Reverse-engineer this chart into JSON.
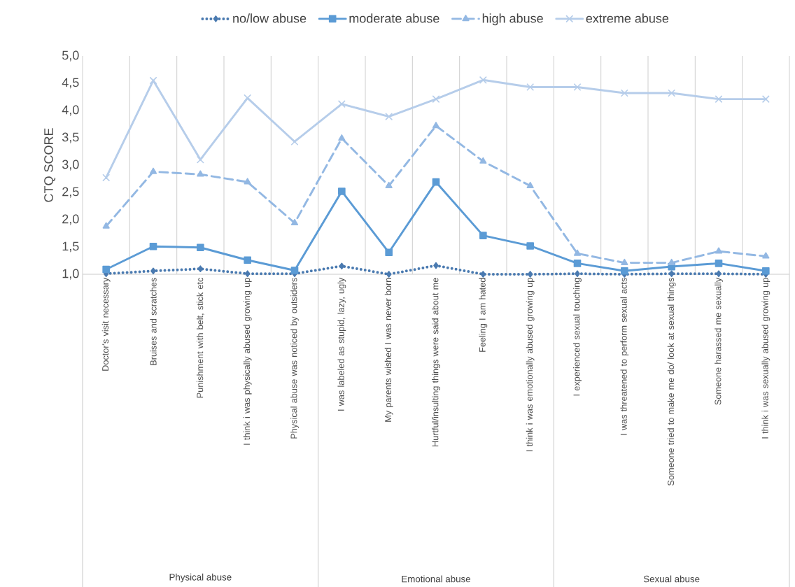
{
  "chart_data": {
    "type": "line",
    "ylabel": "CTQ SCORE",
    "categories": [
      "Doctor's visit necessary",
      "Bruises and scratches",
      "Punishment with belt, stick etc",
      "I think i was physically abused growing up",
      "Physical abuse was noticed by outsiders",
      "I was labeled as stupid, lazy, ugly",
      "My parents wished I was never born",
      "Hurtful/insulting things were said about me",
      "Feeling I am hated",
      "I think i was emotionally abused growing up",
      "I experienced sexual touching",
      "I was threatened to perform sexual acts",
      "Someone tried to make me do/ look at sexual things",
      "Someone harassed me sexually",
      "I think i was sexually abused growing up"
    ],
    "series": [
      {
        "name": "no/low abuse",
        "color": "#4a7ab0",
        "marker": "diamond",
        "line_style": "dotted",
        "values": [
          1.01,
          1.06,
          1.1,
          1.01,
          1.01,
          1.15,
          1.0,
          1.16,
          1.0,
          1.0,
          1.01,
          1.0,
          1.01,
          1.01,
          1.0
        ]
      },
      {
        "name": "moderate abuse",
        "color": "#5b9bd5",
        "marker": "square",
        "line_style": "solid",
        "values": [
          1.09,
          1.51,
          1.49,
          1.26,
          1.07,
          2.52,
          1.4,
          2.69,
          1.71,
          1.52,
          1.2,
          1.06,
          1.14,
          1.2,
          1.06
        ]
      },
      {
        "name": "high abuse",
        "color": "#93b8e3",
        "marker": "triangle",
        "line_style": "dashed",
        "values": [
          1.88,
          2.88,
          2.83,
          2.69,
          1.94,
          3.49,
          2.62,
          3.72,
          3.07,
          2.62,
          1.38,
          1.21,
          1.21,
          1.42,
          1.33
        ]
      },
      {
        "name": "extreme abuse",
        "color": "#b6cdea",
        "marker": "cross",
        "line_style": "solid",
        "values": [
          2.77,
          4.55,
          3.1,
          4.23,
          3.43,
          4.12,
          3.89,
          4.21,
          4.56,
          4.43,
          4.43,
          4.32,
          4.32,
          4.21,
          4.21
        ]
      }
    ],
    "ylim": [
      1,
      5
    ],
    "yticks": [
      {
        "value": 1,
        "label": "1,0"
      },
      {
        "value": 1.5,
        "label": "1,5"
      },
      {
        "value": 2,
        "label": "2,0"
      },
      {
        "value": 2.5,
        "label": "2,5"
      },
      {
        "value": 3,
        "label": "3,0"
      },
      {
        "value": 3.5,
        "label": "3,5"
      },
      {
        "value": 4,
        "label": "4,0"
      },
      {
        "value": 4.5,
        "label": "4,5"
      },
      {
        "value": 5,
        "label": "5,0"
      }
    ],
    "grid": "x",
    "legend": "top",
    "annotations": [
      "Physical abuse",
      "Emotional abuse",
      "Sexual abuse"
    ]
  }
}
